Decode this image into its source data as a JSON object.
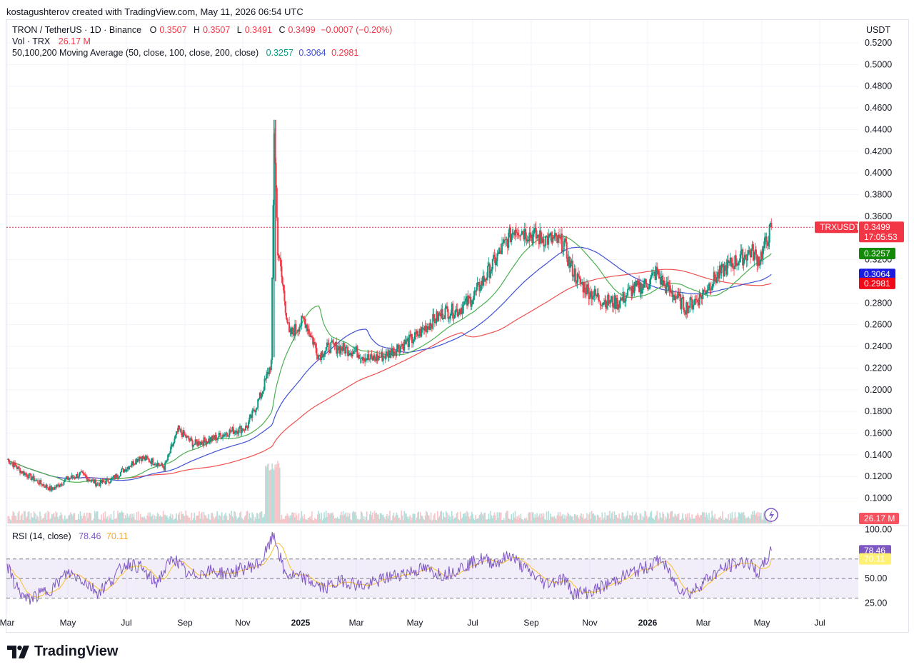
{
  "credit": "kostagushterov created with TradingView.com, May 11, 2026 06:54 UTC",
  "brand": "TradingView",
  "currency_button": "USDT",
  "legend": {
    "symbol": "TRON / TetherUS · 1D · Binance",
    "o_label": "O",
    "o_value": "0.3507",
    "h_label": "H",
    "h_value": "0.3507",
    "l_label": "L",
    "l_value": "0.3491",
    "c_label": "C",
    "c_value": "0.3499",
    "change": "−0.0007 (−0.20%)",
    "vol_label": "Vol · TRX",
    "vol_value": "26.17 M",
    "ma_label": "50,100,200 Moving Average (50, close, 100, close, 200, close)",
    "ma50_value": "0.3257",
    "ma100_value": "0.3064",
    "ma200_value": "0.2981",
    "rsi_label": "RSI (14, close)",
    "rsi_value": "78.46",
    "rsi_ma_value": "70.11"
  },
  "badges": {
    "symbol": "TRXUSDT",
    "price": "0.3499",
    "countdown": "17:05:53",
    "ma50": "0.3257",
    "ma100": "0.3064",
    "ma200": "0.2981",
    "volume": "26.17 M",
    "rsi": "78.46",
    "rsi_ma": "70.11"
  },
  "colors": {
    "up": "#089981",
    "down": "#f23645",
    "ma50": "#4caf50",
    "ma100": "#3f51d6",
    "ma200": "#f0504f",
    "rsi": "#7e57c2",
    "rsi_ma": "#fbc02d",
    "last_price": "#f23645",
    "rsi_band": "#7e57c2"
  },
  "chart_data": [
    {
      "type": "line",
      "subtype": "candlestick",
      "title": "TRON / TetherUS · 1D · Binance",
      "y_ticks": [
        "0.5200",
        "0.5000",
        "0.4800",
        "0.4600",
        "0.4400",
        "0.4200",
        "0.4000",
        "0.3800",
        "0.3600",
        "0.3200",
        "0.2800",
        "0.2600",
        "0.2400",
        "0.2200",
        "0.2000",
        "0.1800",
        "0.1600",
        "0.1400",
        "0.1200",
        "0.1000"
      ],
      "ylim": [
        0.087,
        0.527
      ],
      "x_ticks": [
        "Mar",
        "May",
        "Jul",
        "Sep",
        "Nov",
        "2025",
        "Mar",
        "May",
        "Jul",
        "Sep",
        "Nov",
        "2026",
        "Mar",
        "May",
        "Jul"
      ],
      "x_tick_bold": [
        false,
        false,
        false,
        false,
        false,
        true,
        false,
        false,
        false,
        false,
        false,
        true,
        false,
        false,
        false
      ],
      "x_tick_dates": [
        "2024-03-01",
        "2024-05-01",
        "2024-07-01",
        "2024-09-01",
        "2024-11-01",
        "2025-01-01",
        "2025-03-01",
        "2025-05-01",
        "2025-07-01",
        "2025-09-01",
        "2025-11-01",
        "2026-01-01",
        "2026-03-01",
        "2026-05-01",
        "2026-07-01"
      ],
      "last_price": 0.3499,
      "price_path": [
        [
          "2024-03-01",
          0.136
        ],
        [
          "2024-03-15",
          0.125
        ],
        [
          "2024-04-01",
          0.115
        ],
        [
          "2024-04-15",
          0.108
        ],
        [
          "2024-05-01",
          0.118
        ],
        [
          "2024-05-15",
          0.122
        ],
        [
          "2024-06-01",
          0.113
        ],
        [
          "2024-06-15",
          0.117
        ],
        [
          "2024-07-01",
          0.128
        ],
        [
          "2024-07-15",
          0.138
        ],
        [
          "2024-08-01",
          0.133
        ],
        [
          "2024-08-10",
          0.128
        ],
        [
          "2024-08-25",
          0.163
        ],
        [
          "2024-09-10",
          0.15
        ],
        [
          "2024-10-01",
          0.155
        ],
        [
          "2024-10-20",
          0.162
        ],
        [
          "2024-11-05",
          0.165
        ],
        [
          "2024-11-20",
          0.195
        ],
        [
          "2024-12-01",
          0.225
        ],
        [
          "2024-12-04",
          0.44
        ],
        [
          "2024-12-08",
          0.33
        ],
        [
          "2024-12-20",
          0.25
        ],
        [
          "2025-01-05",
          0.265
        ],
        [
          "2025-01-20",
          0.232
        ],
        [
          "2025-02-01",
          0.24
        ],
        [
          "2025-02-15",
          0.238
        ],
        [
          "2025-03-01",
          0.235
        ],
        [
          "2025-03-15",
          0.228
        ],
        [
          "2025-04-01",
          0.232
        ],
        [
          "2025-04-15",
          0.24
        ],
        [
          "2025-05-01",
          0.248
        ],
        [
          "2025-05-15",
          0.26
        ],
        [
          "2025-06-01",
          0.272
        ],
        [
          "2025-06-15",
          0.273
        ],
        [
          "2025-07-01",
          0.285
        ],
        [
          "2025-07-15",
          0.305
        ],
        [
          "2025-08-01",
          0.33
        ],
        [
          "2025-08-15",
          0.35
        ],
        [
          "2025-08-25",
          0.345
        ],
        [
          "2025-09-10",
          0.34
        ],
        [
          "2025-09-25",
          0.338
        ],
        [
          "2025-10-05",
          0.335
        ],
        [
          "2025-10-10",
          0.318
        ],
        [
          "2025-10-20",
          0.3
        ],
        [
          "2025-11-01",
          0.29
        ],
        [
          "2025-11-15",
          0.282
        ],
        [
          "2025-12-01",
          0.28
        ],
        [
          "2025-12-15",
          0.292
        ],
        [
          "2026-01-01",
          0.298
        ],
        [
          "2026-01-10",
          0.308
        ],
        [
          "2026-01-20",
          0.295
        ],
        [
          "2026-02-01",
          0.285
        ],
        [
          "2026-02-10",
          0.276
        ],
        [
          "2026-02-25",
          0.285
        ],
        [
          "2026-03-10",
          0.3
        ],
        [
          "2026-03-25",
          0.313
        ],
        [
          "2026-04-10",
          0.322
        ],
        [
          "2026-04-20",
          0.328
        ],
        [
          "2026-04-28",
          0.32
        ],
        [
          "2026-05-05",
          0.335
        ],
        [
          "2026-05-11",
          0.3499
        ]
      ],
      "volume_label": "26.17 M"
    },
    {
      "type": "line",
      "title": "RSI (14, close)",
      "y_ticks": [
        "100.00",
        "50.00",
        "25.00"
      ],
      "band": [
        30,
        70
      ],
      "ylim": [
        15,
        102
      ],
      "series": [
        {
          "name": "RSI",
          "last": 78.46
        },
        {
          "name": "MA",
          "last": 70.11
        }
      ],
      "rsi_path": [
        [
          "2024-03-01",
          62
        ],
        [
          "2024-03-10",
          42
        ],
        [
          "2024-03-20",
          28
        ],
        [
          "2024-04-01",
          33
        ],
        [
          "2024-04-15",
          40
        ],
        [
          "2024-05-01",
          56
        ],
        [
          "2024-05-15",
          50
        ],
        [
          "2024-06-01",
          36
        ],
        [
          "2024-06-15",
          48
        ],
        [
          "2024-07-01",
          66
        ],
        [
          "2024-07-15",
          62
        ],
        [
          "2024-08-01",
          45
        ],
        [
          "2024-08-20",
          72
        ],
        [
          "2024-09-05",
          52
        ],
        [
          "2024-09-25",
          58
        ],
        [
          "2024-10-15",
          55
        ],
        [
          "2024-11-01",
          60
        ],
        [
          "2024-11-20",
          66
        ],
        [
          "2024-12-04",
          95
        ],
        [
          "2024-12-15",
          55
        ],
        [
          "2025-01-05",
          50
        ],
        [
          "2025-01-25",
          40
        ],
        [
          "2025-02-15",
          48
        ],
        [
          "2025-03-10",
          42
        ],
        [
          "2025-03-30",
          50
        ],
        [
          "2025-04-20",
          56
        ],
        [
          "2025-05-10",
          60
        ],
        [
          "2025-06-01",
          54
        ],
        [
          "2025-06-20",
          62
        ],
        [
          "2025-07-10",
          70
        ],
        [
          "2025-07-25",
          66
        ],
        [
          "2025-08-10",
          74
        ],
        [
          "2025-08-25",
          60
        ],
        [
          "2025-09-15",
          45
        ],
        [
          "2025-10-05",
          50
        ],
        [
          "2025-10-15",
          35
        ],
        [
          "2025-11-01",
          36
        ],
        [
          "2025-11-20",
          44
        ],
        [
          "2025-12-10",
          54
        ],
        [
          "2026-01-01",
          62
        ],
        [
          "2026-01-15",
          70
        ],
        [
          "2026-02-01",
          42
        ],
        [
          "2026-02-15",
          35
        ],
        [
          "2026-03-05",
          50
        ],
        [
          "2026-03-25",
          62
        ],
        [
          "2026-04-15",
          68
        ],
        [
          "2026-04-28",
          55
        ],
        [
          "2026-05-11",
          78.46
        ]
      ]
    }
  ]
}
